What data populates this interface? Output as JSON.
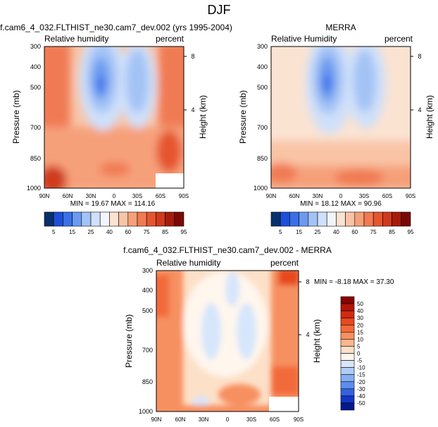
{
  "chart_data": {
    "type": "heatmap",
    "title": "DJF",
    "panels": [
      {
        "title": "f.cam6_4_032.FLTHIST_ne30.cam7_dev.002 (yrs 1995-2004)",
        "left_label": "Relative humidity",
        "right_label": "percent",
        "stats": "MIN =  19.67  MAX = 114.16",
        "ylabel": "Pressure (mb)",
        "y2label": "Height (km)",
        "pressure_ticks": [
          "300",
          "400",
          "500",
          "700",
          "850",
          "1000"
        ],
        "height_ticks": [
          "8",
          "4"
        ],
        "lat_ticks": [
          "90N",
          "60N",
          "30N",
          "0",
          "30S",
          "60S",
          "90S"
        ],
        "colorbar": {
          "levels": [
            "5",
            "15",
            "25",
            "40",
            "60",
            "75",
            "85",
            "95"
          ],
          "colors": [
            "#08306b",
            "#1d4fd8",
            "#3a6fe8",
            "#6b9af0",
            "#a3c2f5",
            "#cfe0fa",
            "#f2f6fc",
            "#fbe3d2",
            "#f9c4a6",
            "#f6a07a",
            "#f07a52",
            "#e5552f",
            "#cf3a1c",
            "#a61c0c",
            "#7a0a05"
          ]
        }
      },
      {
        "title": "MERRA",
        "left_label": "Relative Humidity",
        "right_label": "percent",
        "stats": "MIN =  18.12  MAX =  90.96",
        "ylabel": "Pressure (mb)",
        "y2label": "Height (km)",
        "pressure_ticks": [
          "300",
          "400",
          "500",
          "700",
          "850",
          "1000"
        ],
        "height_ticks": [
          "8",
          "4"
        ],
        "lat_ticks": [
          "90N",
          "60N",
          "30N",
          "0",
          "30S",
          "60S",
          "90S"
        ],
        "colorbar": {
          "levels": [
            "5",
            "15",
            "25",
            "40",
            "60",
            "75",
            "85",
            "95"
          ],
          "colors": [
            "#08306b",
            "#1d4fd8",
            "#3a6fe8",
            "#6b9af0",
            "#a3c2f5",
            "#cfe0fa",
            "#f2f6fc",
            "#fbe3d2",
            "#f9c4a6",
            "#f6a07a",
            "#f07a52",
            "#e5552f",
            "#cf3a1c",
            "#a61c0c",
            "#7a0a05"
          ]
        }
      },
      {
        "title": "f.cam6_4_032.FLTHIST_ne30.cam7_dev.002 - MERRA",
        "left_label": "Relative humidity",
        "right_label": "percent",
        "stats": "MIN = -8.18  MAX = 37.30",
        "ylabel": "Pressure (mb)",
        "y2label": "Height (km)",
        "pressure_ticks": [
          "300",
          "400",
          "500",
          "700",
          "850",
          "1000"
        ],
        "height_ticks": [
          "8",
          "4"
        ],
        "lat_ticks": [
          "90N",
          "60N",
          "30N",
          "0",
          "30S",
          "60S",
          "90S"
        ],
        "colorbar": {
          "levels": [
            "50",
            "40",
            "30",
            "20",
            "15",
            "10",
            "5",
            "0",
            "-5",
            "-10",
            "-15",
            "-20",
            "-30",
            "-40",
            "-50"
          ],
          "colors": [
            "#8b0000",
            "#b3150a",
            "#d42a12",
            "#e8491f",
            "#f26a3a",
            "#f79060",
            "#fbb68d",
            "#fde0c8",
            "#fff6ee",
            "#d6e6fb",
            "#b0cdf7",
            "#86aff2",
            "#5c8eec",
            "#3463e0",
            "#1535c4",
            "#041a8c"
          ]
        }
      }
    ]
  }
}
